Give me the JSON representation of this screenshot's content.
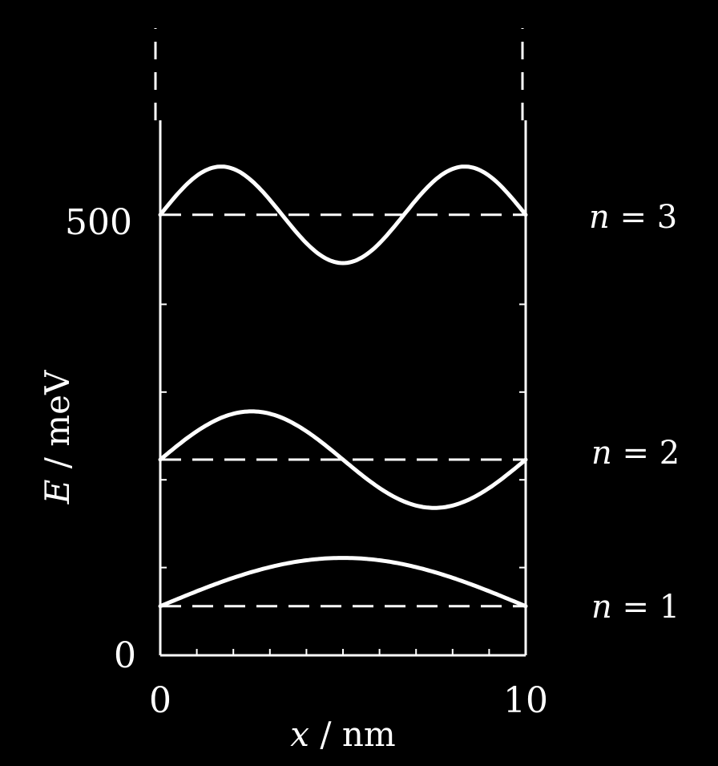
{
  "chart_data": {
    "type": "line",
    "xlabel_var": "x",
    "xlabel_unit": " / nm",
    "ylabel_var": "E",
    "ylabel_unit": " / meV",
    "xlim": [
      0,
      10
    ],
    "ylim": [
      0,
      500
    ],
    "x_ticks": [
      "0",
      "10"
    ],
    "y_ticks": [
      "0",
      "500"
    ],
    "grid": false,
    "well_width_nm": 10,
    "levels": [
      {
        "n": 1,
        "energy": 56,
        "label_var": "n",
        "label_rest": " = 1"
      },
      {
        "n": 2,
        "energy": 223,
        "label_var": "n",
        "label_rest": " = 2"
      },
      {
        "n": 3,
        "energy": 502,
        "label_var": "n",
        "label_rest": " = 3"
      }
    ],
    "wavefunction_amplitude_meV": 55
  },
  "colors": {
    "background": "#000000",
    "foreground": "#ffffff"
  }
}
